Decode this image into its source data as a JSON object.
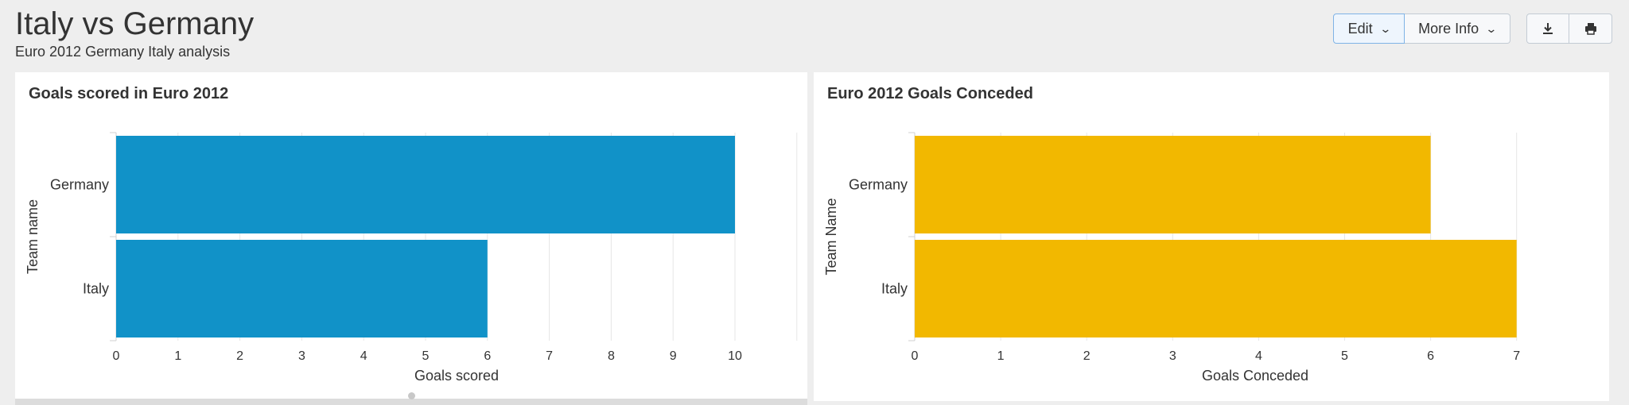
{
  "header": {
    "title": "Italy vs Germany",
    "subtitle": "Euro 2012 Germany Italy analysis"
  },
  "toolbar": {
    "edit_label": "Edit",
    "more_info_label": "More Info",
    "download_icon": "download-icon",
    "print_icon": "print-icon"
  },
  "chart_data": [
    {
      "type": "bar",
      "orientation": "horizontal",
      "title": "Goals scored in Euro 2012",
      "categories": [
        "Germany",
        "Italy"
      ],
      "values": [
        10,
        6
      ],
      "xlabel": "Goals scored",
      "ylabel": "Team name",
      "xlim": [
        0,
        11
      ],
      "xticks": [
        0,
        1,
        2,
        3,
        4,
        5,
        6,
        7,
        8,
        9,
        10
      ],
      "color": "#1192c8",
      "grid": true
    },
    {
      "type": "bar",
      "orientation": "horizontal",
      "title": "Euro 2012 Goals Conceded",
      "categories": [
        "Germany",
        "Italy"
      ],
      "values": [
        6,
        7
      ],
      "xlabel": "Goals Conceded",
      "ylabel": "Team Name",
      "xlim": [
        0,
        7
      ],
      "xticks": [
        0,
        1,
        2,
        3,
        4,
        5,
        6,
        7
      ],
      "color": "#f2b800",
      "grid": true
    }
  ]
}
